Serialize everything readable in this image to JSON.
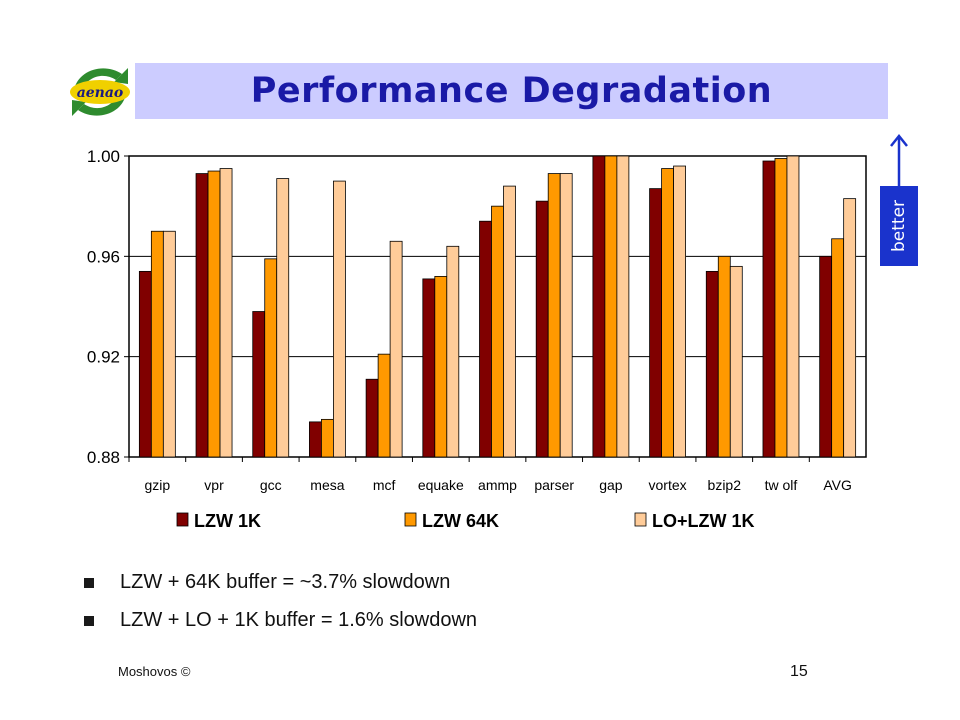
{
  "slide": {
    "title": "Performance Degradation",
    "logo_text": "aenao",
    "better_label": "better",
    "bullets": [
      "LZW + 64K buffer = ~3.7% slowdown",
      "LZW + LO + 1K buffer = 1.6% slowdown"
    ],
    "footer_left": "Moshovos ©",
    "page_number": "15"
  },
  "colors": {
    "title_bg": "#ccccff",
    "title_text": "#1a1aa6",
    "better_bg": "#1a33cc",
    "series": [
      "#800000",
      "#ff9900",
      "#ffcc99"
    ]
  },
  "chart_data": {
    "type": "bar",
    "categories": [
      "gzip",
      "vpr",
      "gcc",
      "mesa",
      "mcf",
      "equake",
      "ammp",
      "parser",
      "gap",
      "vortex",
      "bzip2",
      "tw olf",
      "AVG"
    ],
    "series": [
      {
        "name": "LZW 1K",
        "values": [
          0.954,
          0.993,
          0.938,
          0.894,
          0.911,
          0.951,
          0.974,
          0.982,
          1.0,
          0.987,
          0.954,
          0.998,
          0.96
        ]
      },
      {
        "name": "LZW 64K",
        "values": [
          0.97,
          0.994,
          0.959,
          0.895,
          0.921,
          0.952,
          0.98,
          0.993,
          1.0,
          0.995,
          0.96,
          0.999,
          0.967
        ]
      },
      {
        "name": "LO+LZW 1K",
        "values": [
          0.97,
          0.995,
          0.991,
          0.99,
          0.966,
          0.964,
          0.988,
          0.993,
          1.0,
          0.996,
          0.956,
          1.0,
          0.983
        ]
      }
    ],
    "ylim": [
      0.88,
      1.0
    ],
    "yticks": [
      "0.88",
      "0.92",
      "0.96",
      "1.00"
    ],
    "ytick_values": [
      0.88,
      0.92,
      0.96,
      1.0
    ],
    "grid": true,
    "legend_position": "bottom"
  }
}
